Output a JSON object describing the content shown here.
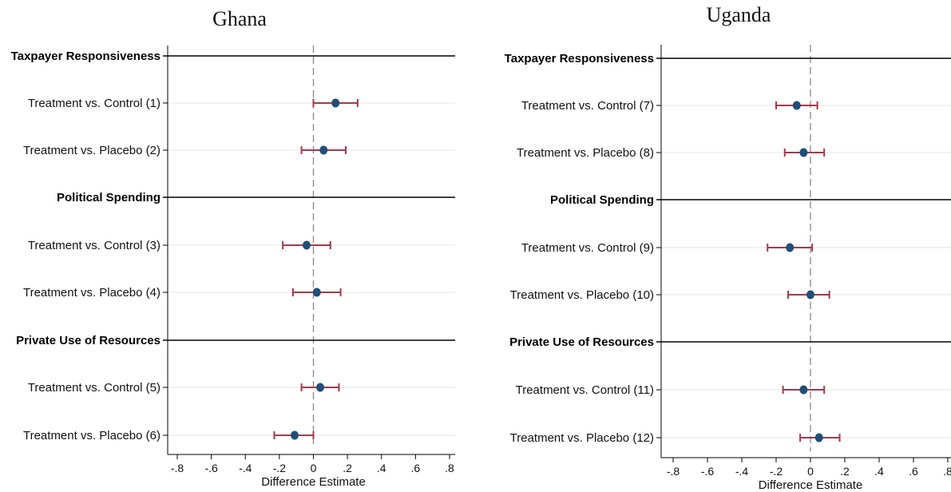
{
  "colors": {
    "marker": "#1f4e79",
    "ci": "#a33a4a",
    "grid": "#e6e6e6",
    "axis": "#000000",
    "zero": "#888888"
  },
  "chart_data": [
    {
      "type": "scatter",
      "title": "Ghana",
      "xlabel": "Difference Estimate",
      "xlim": [
        -0.8,
        0.8
      ],
      "xticks": [
        "-.8",
        "-.6",
        "-.4",
        "-.2",
        "0",
        ".2",
        ".4",
        ".6",
        ".8"
      ],
      "groups": [
        {
          "header": "Taxpayer Responsiveness",
          "rows": [
            {
              "label": "Treatment vs. Control (1)",
              "estimate": 0.13,
              "ci": [
                0.0,
                0.26
              ]
            },
            {
              "label": "Treatment vs. Placebo (2)",
              "estimate": 0.06,
              "ci": [
                -0.07,
                0.19
              ]
            }
          ]
        },
        {
          "header": "Political Spending",
          "rows": [
            {
              "label": "Treatment vs. Control (3)",
              "estimate": -0.04,
              "ci": [
                -0.18,
                0.1
              ]
            },
            {
              "label": "Treatment vs. Placebo (4)",
              "estimate": 0.02,
              "ci": [
                -0.12,
                0.16
              ]
            }
          ]
        },
        {
          "header": "Private Use of Resources",
          "rows": [
            {
              "label": "Treatment vs. Control (5)",
              "estimate": 0.04,
              "ci": [
                -0.07,
                0.15
              ]
            },
            {
              "label": "Treatment vs. Placebo (6)",
              "estimate": -0.11,
              "ci": [
                -0.23,
                0.0
              ]
            }
          ]
        }
      ]
    },
    {
      "type": "scatter",
      "title": "Uganda",
      "xlabel": "Difference Estimate",
      "xlim": [
        -0.8,
        0.8
      ],
      "xticks": [
        "-.8",
        "-.6",
        "-.4",
        "-.2",
        "0",
        ".2",
        ".4",
        ".6",
        ".8"
      ],
      "groups": [
        {
          "header": "Taxpayer Responsiveness",
          "rows": [
            {
              "label": "Treatment vs. Control (7)",
              "estimate": -0.08,
              "ci": [
                -0.2,
                0.04
              ]
            },
            {
              "label": "Treatment vs. Placebo (8)",
              "estimate": -0.04,
              "ci": [
                -0.15,
                0.08
              ]
            }
          ]
        },
        {
          "header": "Political Spending",
          "rows": [
            {
              "label": "Treatment vs. Control (9)",
              "estimate": -0.12,
              "ci": [
                -0.25,
                0.01
              ]
            },
            {
              "label": "Treatment vs. Placebo (10)",
              "estimate": 0.0,
              "ci": [
                -0.13,
                0.11
              ]
            }
          ]
        },
        {
          "header": "Private Use of Resources",
          "rows": [
            {
              "label": "Treatment vs. Control (11)",
              "estimate": -0.04,
              "ci": [
                -0.16,
                0.08
              ]
            },
            {
              "label": "Treatment vs. Placebo (12)",
              "estimate": 0.05,
              "ci": [
                -0.06,
                0.17
              ]
            }
          ]
        }
      ]
    }
  ]
}
